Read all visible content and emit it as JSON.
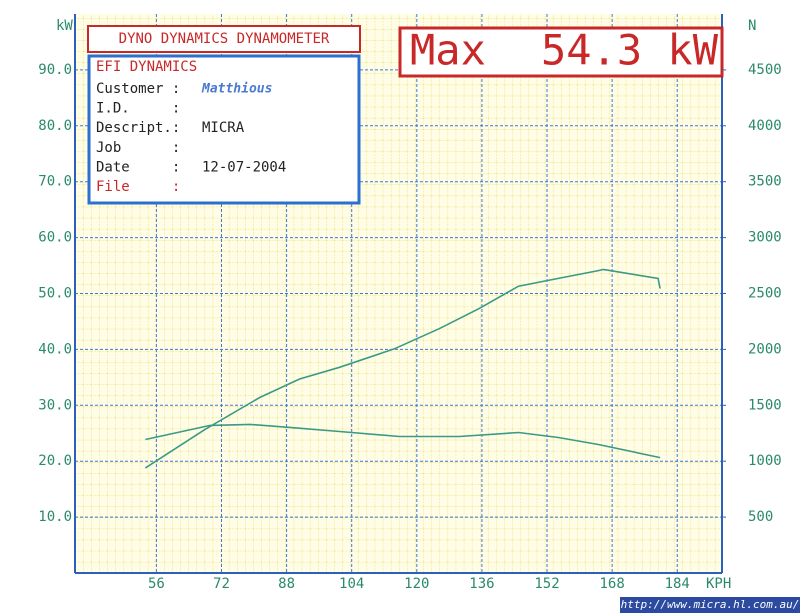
{
  "chart_data": {
    "type": "line",
    "title": "DYNO DYNAMICS DYNAMOMETER",
    "max_label": "Max",
    "max_value": "54.3 kW",
    "ylabel": "kW",
    "y2label": "N",
    "xlabel": "KPH",
    "xlim": [
      36,
      195
    ],
    "xticks": [
      56,
      72,
      88,
      104,
      120,
      136,
      152,
      168,
      184
    ],
    "ylim": [
      0,
      100
    ],
    "yticks": [
      {
        "value": 10,
        "label": "10.0"
      },
      {
        "value": 20,
        "label": "20.0"
      },
      {
        "value": 30,
        "label": "30.0"
      },
      {
        "value": 40,
        "label": "40.0"
      },
      {
        "value": 50,
        "label": "50.0"
      },
      {
        "value": 60,
        "label": "60.0"
      },
      {
        "value": 70,
        "label": "70.0"
      },
      {
        "value": 80,
        "label": "80.0"
      },
      {
        "value": 90,
        "label": "90.0"
      }
    ],
    "y2lim": [
      0,
      5000
    ],
    "y2ticks": [
      500,
      1000,
      1500,
      2000,
      2500,
      3000,
      3500,
      4000,
      4500
    ],
    "grid": true,
    "series": [
      {
        "color": "#3a9a86",
        "x": [
          53.3,
          68,
          81.4,
          91.2,
          101,
          114.5,
          125.5,
          135.3,
          145,
          154.8,
          164.6,
          165.8,
          179.3,
          179.8
        ],
        "values": [
          18.8,
          25.7,
          31.4,
          34.7,
          36.8,
          40.1,
          43.7,
          47.3,
          51.3,
          52.7,
          54.1,
          54.3,
          52.7,
          50.9
        ]
      },
      {
        "color": "#3a9a86",
        "axis": "y2",
        "x": [
          53.3,
          69.2,
          79,
          88.8,
          101,
          115.7,
          130.4,
          145,
          154.8,
          164.6,
          179.8
        ],
        "values": [
          1194,
          1320,
          1329,
          1302,
          1266,
          1221,
          1221,
          1257,
          1212,
          1149,
          1032
        ]
      }
    ]
  },
  "info_box": {
    "company": "EFI DYNAMICS",
    "fields": [
      {
        "label": "Customer :",
        "value": "Matthious"
      },
      {
        "label": "I.D.     :"
      },
      {
        "label": "Descript.:",
        "value": "MICRA"
      },
      {
        "label": "Job      :"
      },
      {
        "label": "Date     :",
        "value": "12-07-2004"
      },
      {
        "label": "File     :"
      }
    ]
  },
  "watermark": "http://www.micra.hl.com.au/"
}
